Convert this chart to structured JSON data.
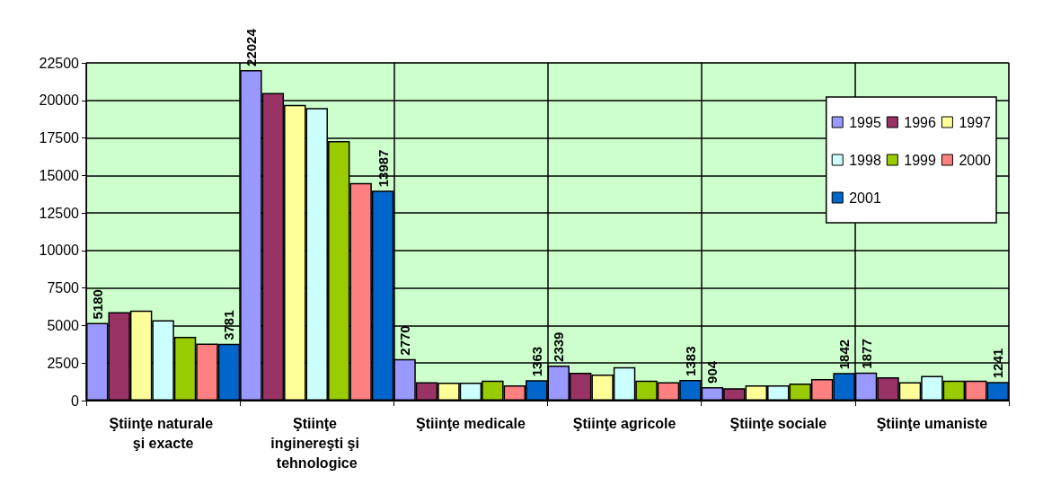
{
  "chart_data": {
    "type": "bar",
    "categories": [
      "Ştiinţe naturale şi exacte",
      "Ştiinţe inginereşti şi tehnologice",
      "Ştiinţe medicale",
      "Ştiinţe agricole",
      "Ştiinţe sociale",
      "Ştiinţe umaniste"
    ],
    "series": [
      {
        "name": "1995",
        "color": "#9999ff",
        "values": [
          5180,
          22024,
          2770,
          2339,
          904,
          1877
        ],
        "value_labels": [
          "5180",
          "22024",
          "2770",
          "2339",
          "904",
          "1877"
        ]
      },
      {
        "name": "1996",
        "color": "#993366",
        "values": [
          5900,
          20500,
          1230,
          1850,
          830,
          1550
        ]
      },
      {
        "name": "1997",
        "color": "#ffff99",
        "values": [
          6000,
          19700,
          1200,
          1740,
          1020,
          1230
        ]
      },
      {
        "name": "1998",
        "color": "#ccffff",
        "values": [
          5350,
          19500,
          1200,
          2230,
          1020,
          1640
        ]
      },
      {
        "name": "1999",
        "color": "#99cc00",
        "values": [
          4250,
          17300,
          1330,
          1330,
          1140,
          1330
        ]
      },
      {
        "name": "2000",
        "color": "#ff8080",
        "values": [
          3800,
          14500,
          1020,
          1230,
          1430,
          1330
        ]
      },
      {
        "name": "2001",
        "color": "#0066cc",
        "values": [
          3781,
          13987,
          1363,
          1383,
          1842,
          1241
        ],
        "value_labels": [
          "3781",
          "13987",
          "1363",
          "1383",
          "1842",
          "1241"
        ]
      }
    ],
    "ylim": [
      0,
      22500
    ],
    "yticks": [
      0,
      2500,
      5000,
      7500,
      10000,
      12500,
      15000,
      17500,
      20000,
      22500
    ],
    "grid": true,
    "legend": "top right"
  }
}
